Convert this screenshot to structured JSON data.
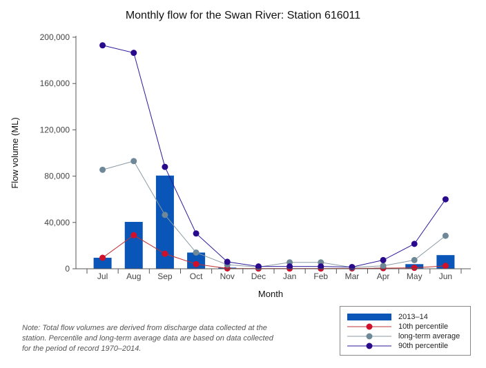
{
  "chart_data": {
    "type": "bar",
    "title": "Monthly flow for the Swan River: Station 616011",
    "xlabel": "Month",
    "ylabel": "Flow volume (ML)",
    "ylim": [
      0,
      200000
    ],
    "yticks": [
      0,
      40000,
      80000,
      120000,
      160000,
      200000
    ],
    "ytick_labels": [
      "0",
      "40,000",
      "80,000",
      "120,000",
      "160,000",
      "200,000"
    ],
    "categories": [
      "Jul",
      "Aug",
      "Sep",
      "Oct",
      "Nov",
      "Dec",
      "Jan",
      "Feb",
      "Mar",
      "Apr",
      "May",
      "Jun"
    ],
    "series": [
      {
        "name": "2013–14",
        "kind": "bar",
        "color": "#0a55b8",
        "values": [
          9500,
          40500,
          80500,
          14000,
          1000,
          300,
          300,
          200,
          300,
          800,
          4000,
          11800
        ]
      },
      {
        "name": "10th percentile",
        "kind": "line",
        "color": "#d0102a",
        "line_color": "#c03030",
        "values": [
          9500,
          29000,
          13000,
          4000,
          300,
          200,
          200,
          200,
          300,
          500,
          800,
          2500
        ]
      },
      {
        "name": "long-term average",
        "kind": "line",
        "color": "#6e8898",
        "line_color": "#8a9aa4",
        "values": [
          85500,
          93000,
          46500,
          14000,
          3500,
          1500,
          5500,
          5500,
          1200,
          2500,
          7500,
          28500
        ]
      },
      {
        "name": "90th percentile",
        "kind": "line",
        "color": "#2a0a8c",
        "line_color": "#2a1a9a",
        "values": [
          193000,
          186500,
          88000,
          30500,
          6000,
          2000,
          2000,
          2000,
          1500,
          7500,
          21500,
          60000
        ]
      }
    ],
    "legend_position": "bottom-right",
    "note": "Note: Total flow volumes are derived from discharge data collected at the station. Percentile and long-term average data are based on data collected for the period of record 1970–2014."
  }
}
